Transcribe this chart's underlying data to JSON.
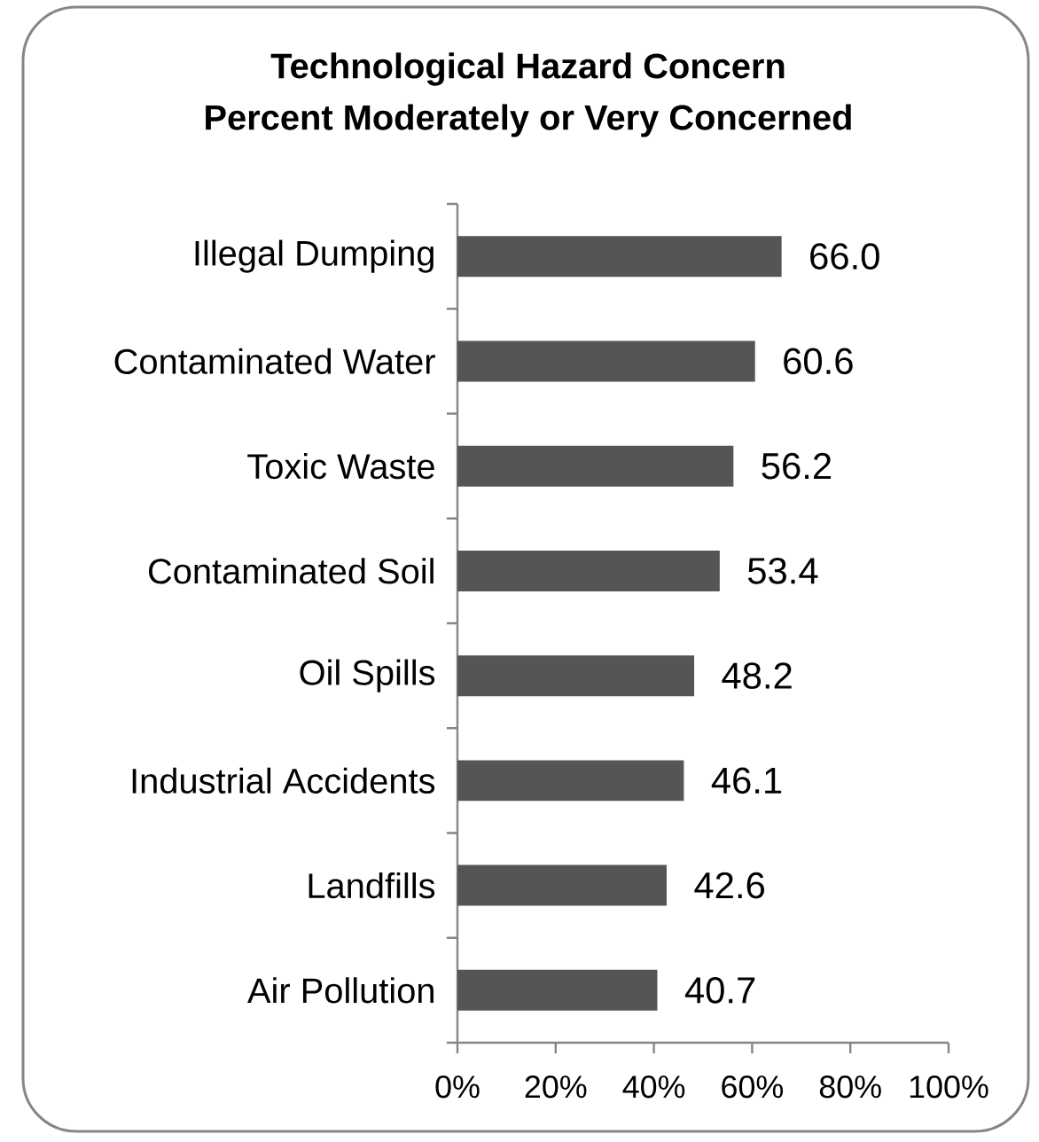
{
  "chart_data": {
    "type": "bar",
    "orientation": "horizontal",
    "title": "Technological Hazard Concern",
    "subtitle": "Percent Moderately or Very Concerned",
    "categories": [
      "Illegal Dumping",
      "Contaminated Water",
      "Toxic Waste",
      "Contaminated Soil",
      "Oil Spills",
      "Industrial Accidents",
      "Landfills",
      "Air Pollution"
    ],
    "values": [
      66.0,
      60.6,
      56.2,
      53.4,
      48.2,
      46.1,
      42.6,
      40.7
    ],
    "value_labels": [
      "66.0",
      "60.6",
      "56.2",
      "53.4",
      "48.2",
      "46.1",
      "42.6",
      "40.7"
    ],
    "color": "#555555",
    "xlim": [
      0,
      100
    ],
    "xticks": [
      {
        "value": 0,
        "label": "0%"
      },
      {
        "value": 20,
        "label": "20%"
      },
      {
        "value": 40,
        "label": "40%"
      },
      {
        "value": 60,
        "label": "60%"
      },
      {
        "value": 80,
        "label": "80%"
      },
      {
        "value": 100,
        "label": "100%"
      }
    ]
  }
}
